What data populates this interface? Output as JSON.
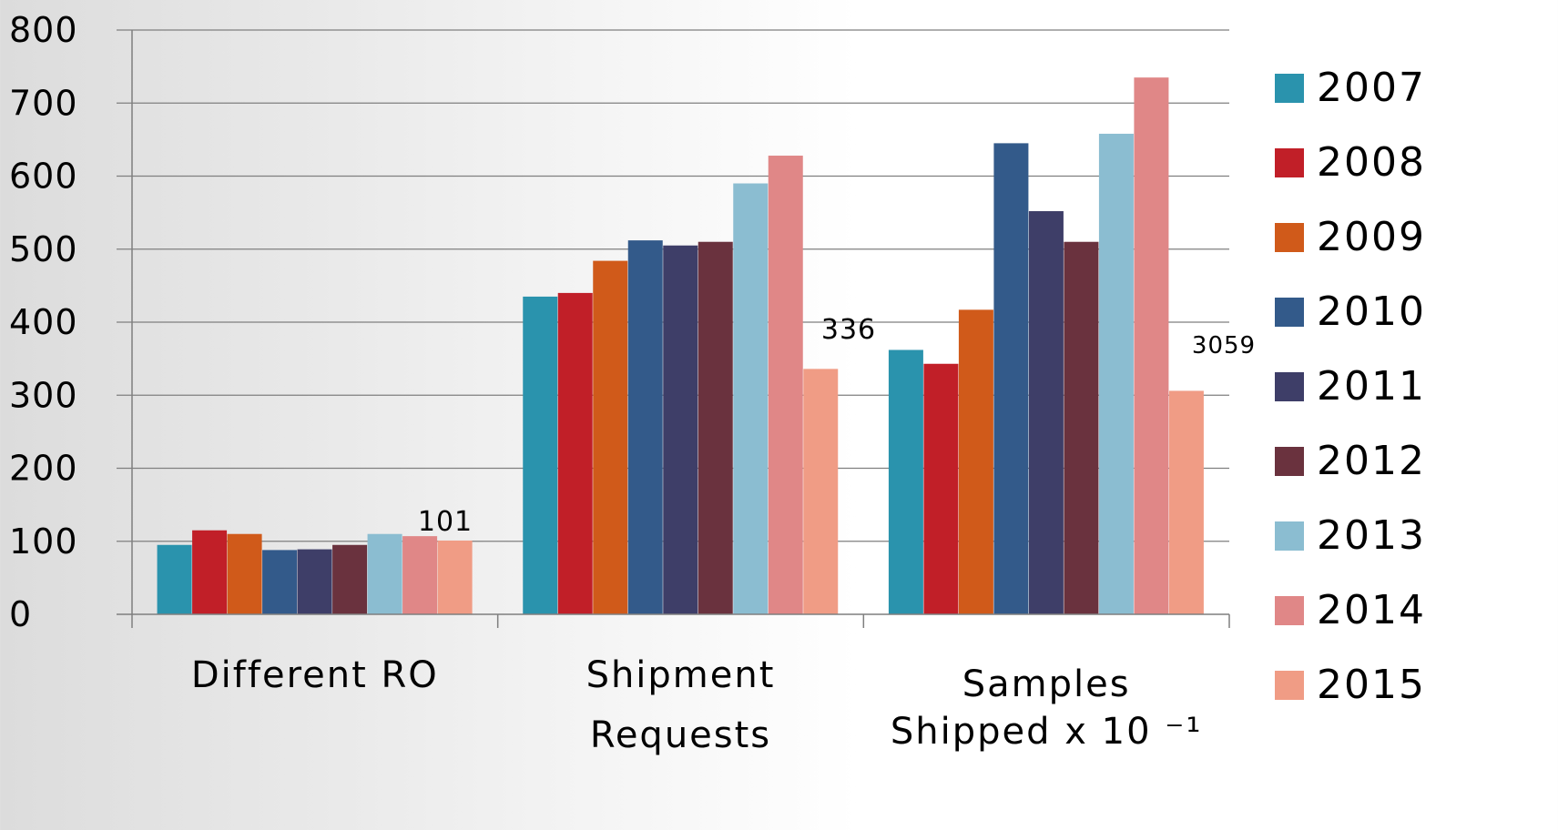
{
  "chart_data": {
    "type": "bar",
    "categories": [
      [
        "Different RO"
      ],
      [
        "Shipment",
        "Requests"
      ],
      [
        "Samples",
        "Shipped x 10 ⁻¹"
      ]
    ],
    "ylim": [
      0,
      800
    ],
    "yticks": [
      "0",
      "100",
      "200",
      "300",
      "400",
      "500",
      "600",
      "700",
      "800"
    ],
    "grid": true,
    "legend_position": "right",
    "series": [
      {
        "name": "2007",
        "color": "#2a93ad",
        "values": [
          95,
          435,
          362
        ]
      },
      {
        "name": "2008",
        "color": "#c11f28",
        "values": [
          115,
          440,
          343
        ]
      },
      {
        "name": "2009",
        "color": "#d05a1a",
        "values": [
          110,
          484,
          417
        ]
      },
      {
        "name": "2010",
        "color": "#335a8a",
        "values": [
          88,
          512,
          645
        ]
      },
      {
        "name": "2011",
        "color": "#3e3e68",
        "values": [
          89,
          505,
          552
        ]
      },
      {
        "name": "2012",
        "color": "#6a323e",
        "values": [
          95,
          510,
          510
        ]
      },
      {
        "name": "2013",
        "color": "#8bbdd1",
        "values": [
          110,
          590,
          658
        ]
      },
      {
        "name": "2014",
        "color": "#e08787",
        "values": [
          107,
          628,
          735
        ]
      },
      {
        "name": "2015",
        "color": "#f09c85",
        "values": [
          101,
          336,
          306
        ]
      }
    ],
    "data_labels": [
      "101",
      "336",
      "3059"
    ]
  }
}
